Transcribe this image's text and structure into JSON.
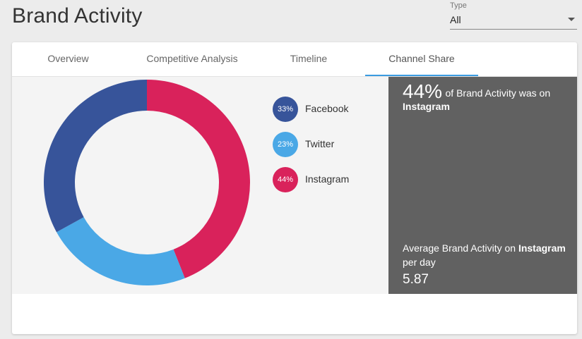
{
  "header": {
    "title": "Brand Activity",
    "type_filter": {
      "label": "Type",
      "value": "All"
    }
  },
  "tabs": [
    {
      "label": "Overview",
      "active": false
    },
    {
      "label": "Competitive Analysis",
      "active": false
    },
    {
      "label": "Timeline",
      "active": false
    },
    {
      "label": "Channel Share",
      "active": true
    }
  ],
  "legend": [
    {
      "name": "Facebook",
      "percent_label": "33%",
      "color": "#37549a"
    },
    {
      "name": "Twitter",
      "percent_label": "23%",
      "color": "#4aa8e6"
    },
    {
      "name": "Instagram",
      "percent_label": "44%",
      "color": "#d9225b"
    }
  ],
  "insight": {
    "percent": "44%",
    "text": "of Brand Activity was on",
    "channel": "Instagram",
    "avg_prefix": "Average Brand Activity on",
    "avg_channel": "Instagram",
    "avg_suffix": "per day",
    "avg_value": "5.87"
  },
  "colors": {
    "accent": "#3a9be0",
    "panel_bg": "#616161"
  },
  "chart_data": {
    "type": "pie",
    "donut": true,
    "start": "top",
    "direction": "clockwise",
    "slices": [
      {
        "label": "Instagram",
        "value": 44,
        "color": "#d9225b"
      },
      {
        "label": "Twitter",
        "value": 23,
        "color": "#4aa8e6"
      },
      {
        "label": "Facebook",
        "value": 33,
        "color": "#37549a"
      }
    ]
  }
}
